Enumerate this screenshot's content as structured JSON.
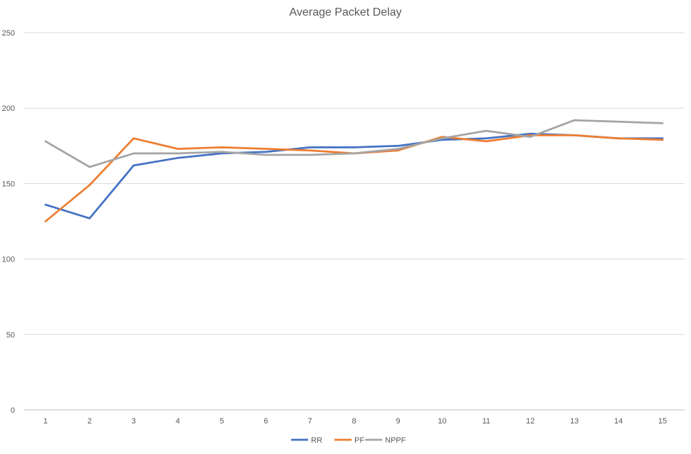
{
  "chart_data": {
    "type": "line",
    "title": "Average Packet Delay",
    "xlabel": "",
    "ylabel": "",
    "categories": [
      "1",
      "2",
      "3",
      "4",
      "5",
      "6",
      "7",
      "8",
      "9",
      "10",
      "11",
      "12",
      "13",
      "14",
      "15"
    ],
    "ylim": [
      0,
      250
    ],
    "yticks": [
      0,
      50,
      100,
      150,
      200,
      250
    ],
    "grid": true,
    "legend": "bottom",
    "series": [
      {
        "name": "RR",
        "color": "#4472c4",
        "values": [
          136,
          127,
          162,
          167,
          170,
          171,
          174,
          174,
          175,
          179,
          180,
          183,
          182,
          180,
          180
        ]
      },
      {
        "name": "PF",
        "color": "#ed7d31",
        "values": [
          125,
          149,
          180,
          173,
          174,
          173,
          172,
          170,
          172,
          181,
          178,
          182,
          182,
          180,
          179
        ]
      },
      {
        "name": "NPPF",
        "color": "#a5a5a5",
        "values": [
          178,
          161,
          170,
          170,
          171,
          169,
          169,
          170,
          173,
          180,
          185,
          181,
          192,
          191,
          190
        ]
      }
    ]
  }
}
